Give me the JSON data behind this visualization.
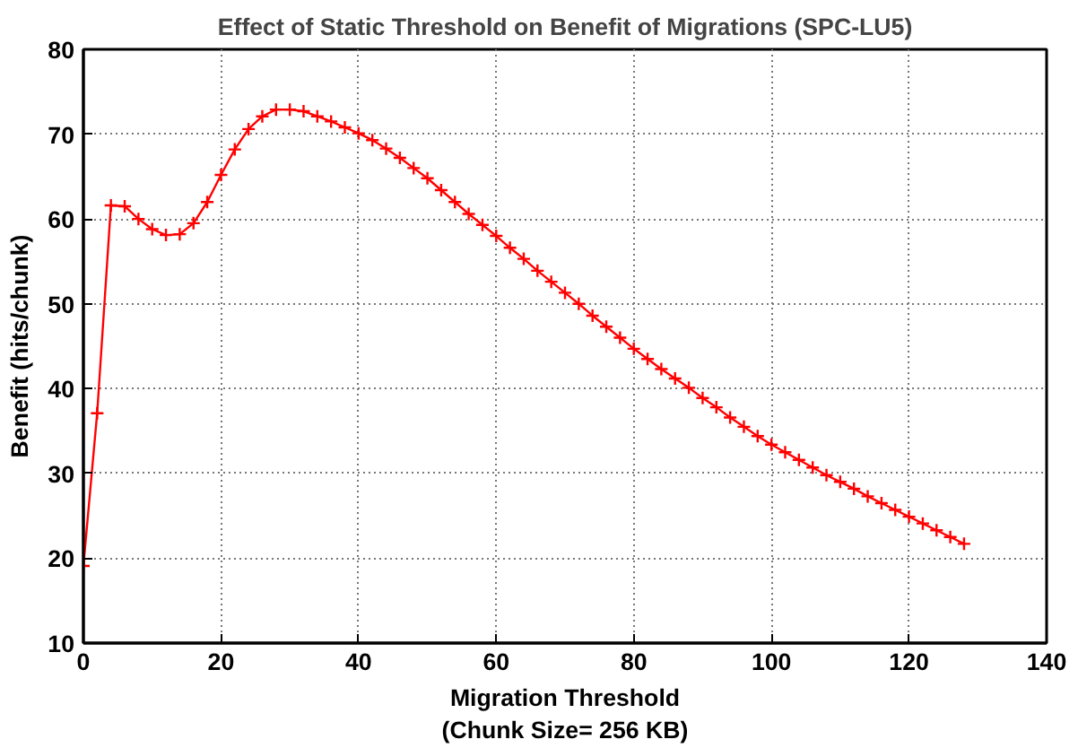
{
  "chart_data": {
    "type": "line",
    "title": "Effect of Static Threshold on Benefit of Migrations (SPC-LU5)",
    "xlabel": "Migration Threshold\n(Chunk Size= 256 KB)",
    "ylabel": "Benefit (hits/chunk)",
    "x": [
      0,
      2,
      4,
      6,
      8,
      10,
      12,
      14,
      16,
      18,
      20,
      22,
      24,
      26,
      28,
      30,
      32,
      34,
      36,
      38,
      40,
      42,
      44,
      46,
      48,
      50,
      52,
      54,
      56,
      58,
      60,
      62,
      64,
      66,
      68,
      70,
      72,
      74,
      76,
      78,
      80,
      82,
      84,
      86,
      88,
      90,
      92,
      94,
      96,
      98,
      100,
      102,
      104,
      106,
      108,
      110,
      112,
      114,
      116,
      118,
      120,
      122,
      124,
      126,
      128
    ],
    "series": [
      {
        "color": "#ff0000",
        "values": [
          19.1,
          37.1,
          61.6,
          61.5,
          60.0,
          58.8,
          58.1,
          58.2,
          59.5,
          62.0,
          65.2,
          68.2,
          70.6,
          72.1,
          72.9,
          72.9,
          72.7,
          72.1,
          71.5,
          70.8,
          70.1,
          69.3,
          68.3,
          67.2,
          66.0,
          64.8,
          63.4,
          62.0,
          60.6,
          59.3,
          58.0,
          56.6,
          55.3,
          53.9,
          52.6,
          51.3,
          50.0,
          48.6,
          47.3,
          46.0,
          44.7,
          43.5,
          42.3,
          41.2,
          40.1,
          38.9,
          37.8,
          36.6,
          35.5,
          34.4,
          33.4,
          32.5,
          31.6,
          30.7,
          29.8,
          29.0,
          28.2,
          27.3,
          26.5,
          25.7,
          24.9,
          24.1,
          23.3,
          22.5,
          21.7
        ]
      }
    ],
    "xlim": [
      0,
      140
    ],
    "ylim": [
      10,
      80
    ],
    "xticks": [
      0,
      20,
      40,
      60,
      80,
      100,
      120,
      140
    ],
    "yticks": [
      10,
      20,
      30,
      40,
      50,
      60,
      70,
      80
    ],
    "grid": true,
    "marker": "cross",
    "line_style": "solid"
  }
}
